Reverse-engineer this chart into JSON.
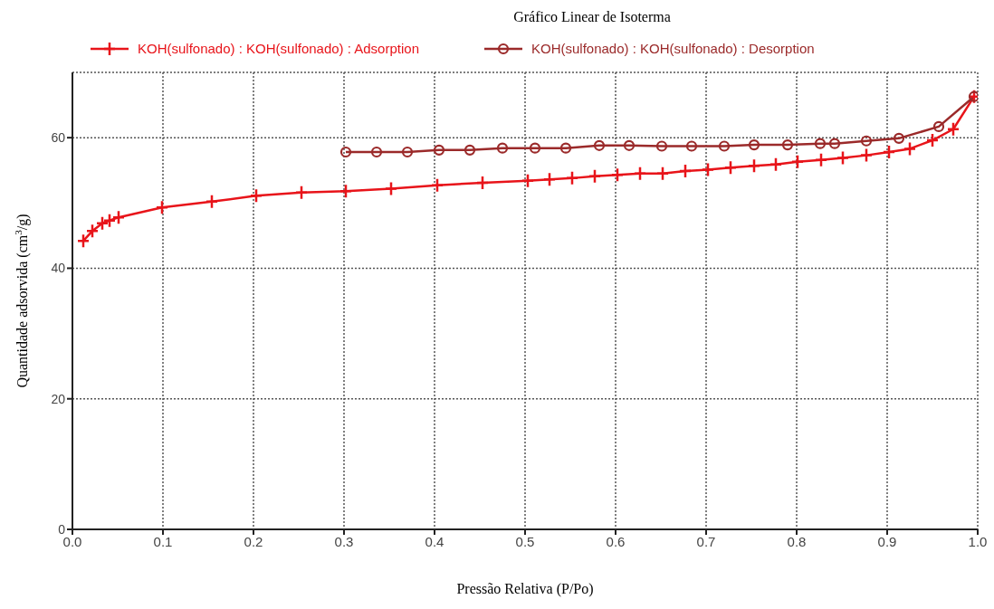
{
  "chart_data": {
    "type": "line",
    "title": "Gráfico Linear de Isoterma",
    "xlabel": "Pressão Relativa (P/Po)",
    "ylabel": "Quantidade adsorvida (cm$^{3}$/g)",
    "xlim": [
      0,
      1
    ],
    "xticks": [
      {
        "value": 0,
        "label": "0.0"
      },
      0.1,
      0.2,
      0.3,
      0.4,
      0.5,
      0.6,
      0.7,
      0.8,
      0.9,
      {
        "value": 1,
        "label": "1.0"
      }
    ],
    "ylim": [
      0,
      70
    ],
    "yticks": [
      0,
      20,
      40,
      60
    ],
    "grid": true,
    "legend": "top",
    "line_style": "solid",
    "series": [
      {
        "name": "KOH(sulfonado) : KOH(sulfonado) : Adsorption",
        "color": "#e8141a",
        "marker": "cross",
        "x": [
          0.012,
          0.022,
          0.033,
          0.041,
          0.051,
          0.099,
          0.154,
          0.203,
          0.253,
          0.302,
          0.352,
          0.403,
          0.453,
          0.503,
          0.527,
          0.552,
          0.577,
          0.602,
          0.627,
          0.652,
          0.677,
          0.702,
          0.727,
          0.753,
          0.777,
          0.801,
          0.827,
          0.851,
          0.877,
          0.902,
          0.925,
          0.95,
          0.973,
          0.996
        ],
        "values": [
          44.2,
          45.7,
          46.9,
          47.3,
          47.8,
          49.3,
          50.2,
          51.1,
          51.6,
          51.8,
          52.2,
          52.7,
          53.1,
          53.4,
          53.6,
          53.8,
          54.1,
          54.3,
          54.5,
          54.5,
          54.9,
          55.1,
          55.4,
          55.7,
          55.9,
          56.3,
          56.6,
          56.9,
          57.3,
          57.8,
          58.3,
          59.6,
          61.3,
          66.3
        ]
      },
      {
        "name": "KOH(sulfonado) : KOH(sulfonado) : Desorption",
        "color": "#9b2a2a",
        "marker": "circle",
        "x": [
          0.302,
          0.336,
          0.37,
          0.405,
          0.439,
          0.475,
          0.511,
          0.545,
          0.582,
          0.615,
          0.651,
          0.684,
          0.72,
          0.753,
          0.79,
          0.826,
          0.842,
          0.877,
          0.913,
          0.957,
          0.996
        ],
        "values": [
          57.8,
          57.8,
          57.8,
          58.1,
          58.1,
          58.4,
          58.4,
          58.4,
          58.8,
          58.8,
          58.7,
          58.7,
          58.7,
          58.9,
          58.9,
          59.1,
          59.1,
          59.5,
          59.9,
          61.7,
          66.3
        ]
      }
    ]
  }
}
